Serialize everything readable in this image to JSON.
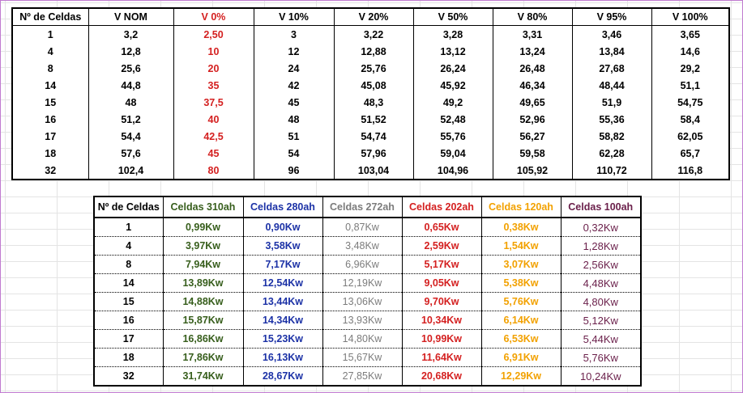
{
  "voltage_table": {
    "headers": [
      "Nº de Celdas",
      "V NOM",
      "V 0%",
      "V 10%",
      "V 20%",
      "V 50%",
      "V 80%",
      "V 95%",
      "V 100%"
    ],
    "rows": [
      [
        "1",
        "3,2",
        "2,50",
        "3",
        "3,22",
        "3,28",
        "3,31",
        "3,46",
        "3,65"
      ],
      [
        "4",
        "12,8",
        "10",
        "12",
        "12,88",
        "13,12",
        "13,24",
        "13,84",
        "14,6"
      ],
      [
        "8",
        "25,6",
        "20",
        "24",
        "25,76",
        "26,24",
        "26,48",
        "27,68",
        "29,2"
      ],
      [
        "14",
        "44,8",
        "35",
        "42",
        "45,08",
        "45,92",
        "46,34",
        "48,44",
        "51,1"
      ],
      [
        "15",
        "48",
        "37,5",
        "45",
        "48,3",
        "49,2",
        "49,65",
        "51,9",
        "54,75"
      ],
      [
        "16",
        "51,2",
        "40",
        "48",
        "51,52",
        "52,48",
        "52,96",
        "55,36",
        "58,4"
      ],
      [
        "17",
        "54,4",
        "42,5",
        "51",
        "54,74",
        "55,76",
        "56,27",
        "58,82",
        "62,05"
      ],
      [
        "18",
        "57,6",
        "45",
        "54",
        "57,96",
        "59,04",
        "59,58",
        "62,28",
        "65,7"
      ],
      [
        "32",
        "102,4",
        "80",
        "96",
        "103,04",
        "104,96",
        "105,92",
        "110,72",
        "116,8"
      ]
    ],
    "highlight_color": "#d42020"
  },
  "power_table": {
    "headers": [
      "Nº de Celdas",
      "Celdas 310ah",
      "Celdas 280ah",
      "Celdas 272ah",
      "Celdas 202ah",
      "Celdas 120ah",
      "Celdas 100ah"
    ],
    "column_colors": [
      "#000000",
      "#375e1c",
      "#1c32a6",
      "#7c7c7c",
      "#d42020",
      "#f2a100",
      "#6a1f4a"
    ],
    "rows": [
      [
        "1",
        "0,99Kw",
        "0,90Kw",
        "0,87Kw",
        "0,65Kw",
        "0,38Kw",
        "0,32Kw"
      ],
      [
        "4",
        "3,97Kw",
        "3,58Kw",
        "3,48Kw",
        "2,59Kw",
        "1,54Kw",
        "1,28Kw"
      ],
      [
        "8",
        "7,94Kw",
        "7,17Kw",
        "6,96Kw",
        "5,17Kw",
        "3,07Kw",
        "2,56Kw"
      ],
      [
        "14",
        "13,89Kw",
        "12,54Kw",
        "12,19Kw",
        "9,05Kw",
        "5,38Kw",
        "4,48Kw"
      ],
      [
        "15",
        "14,88Kw",
        "13,44Kw",
        "13,06Kw",
        "9,70Kw",
        "5,76Kw",
        "4,80Kw"
      ],
      [
        "16",
        "15,87Kw",
        "14,34Kw",
        "13,93Kw",
        "10,34Kw",
        "6,14Kw",
        "5,12Kw"
      ],
      [
        "17",
        "16,86Kw",
        "15,23Kw",
        "14,80Kw",
        "10,99Kw",
        "6,53Kw",
        "5,44Kw"
      ],
      [
        "18",
        "17,86Kw",
        "16,13Kw",
        "15,67Kw",
        "11,64Kw",
        "6,91Kw",
        "5,76Kw"
      ],
      [
        "32",
        "31,74Kw",
        "28,67Kw",
        "27,85Kw",
        "20,68Kw",
        "12,29Kw",
        "10,24Kw"
      ]
    ]
  }
}
